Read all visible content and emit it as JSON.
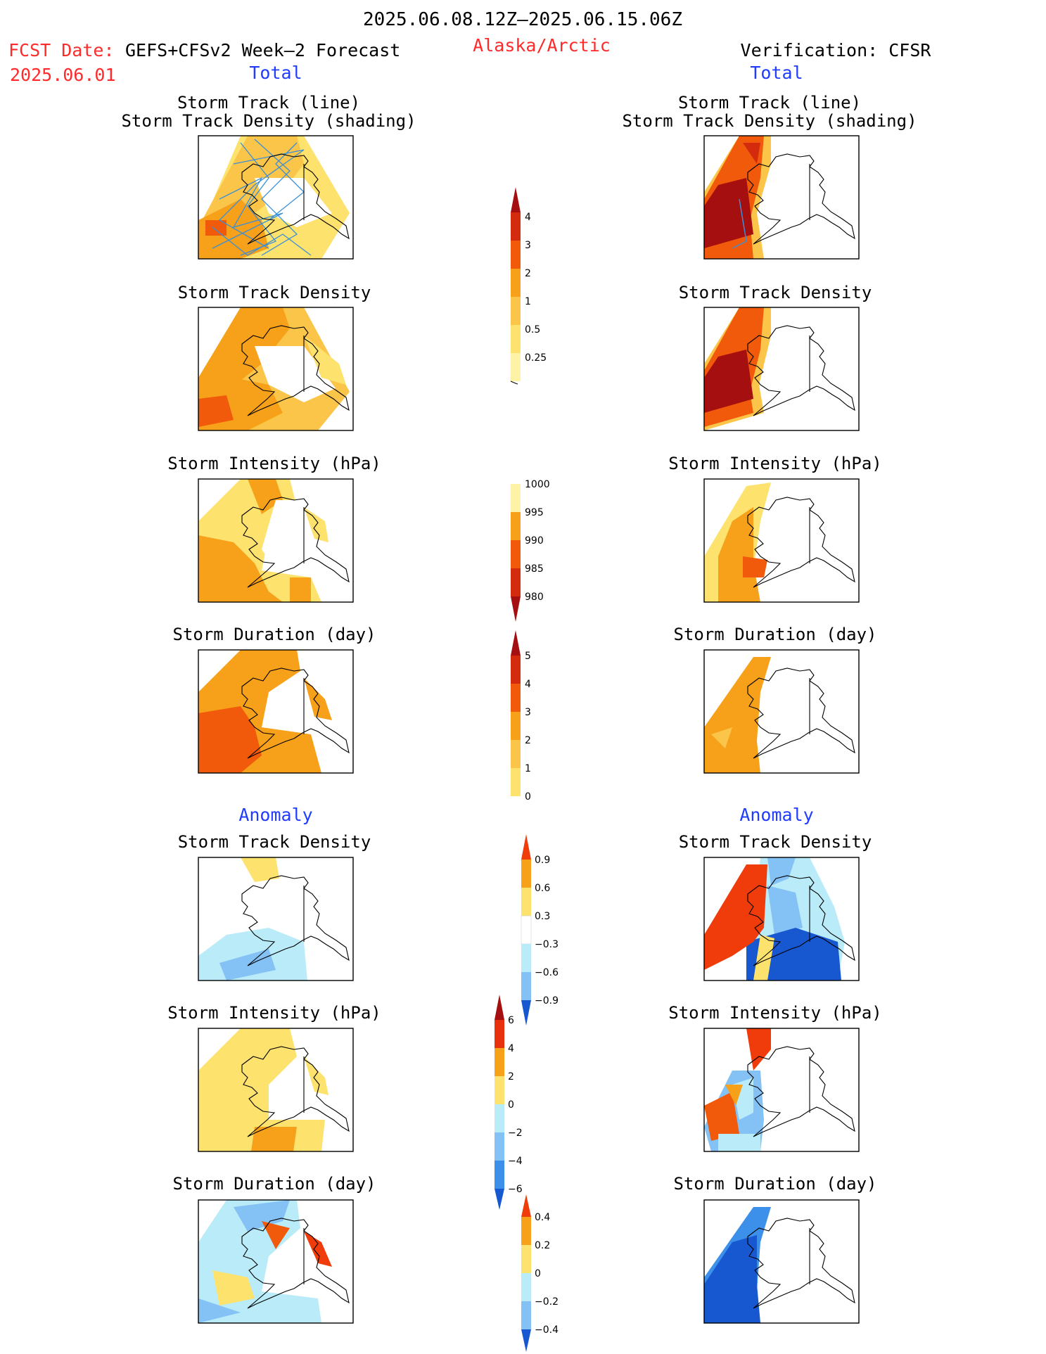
{
  "header": {
    "period": "2025.06.08.12Z–2025.06.15.06Z",
    "fcst_label": "FCST Date:",
    "fcst_model": "GEFS+CFSv2 Week–2 Forecast",
    "fcst_date": "2025.06.01",
    "region": "Alaska/Arctic",
    "verification": "Verification: CFSR"
  },
  "sections": {
    "left_total": "Total",
    "right_total": "Total",
    "left_anomaly": "Anomaly",
    "right_anomaly": "Anomaly"
  },
  "panel_titles": {
    "track_line": "Storm Track (line)",
    "track_shading": "Storm Track Density (shading)",
    "density": "Storm Track Density",
    "intensity": "Storm Intensity (hPa)",
    "duration": "Storm Duration (day)"
  },
  "colorbars": [
    {
      "name": "track-density-total",
      "labels": [
        "4",
        "3",
        "2",
        "1",
        "0.5",
        "0.25"
      ],
      "colors": [
        "#a50f0f",
        "#d42a0e",
        "#f05a0a",
        "#f7a01a",
        "#fbc54a",
        "#fdf2a6"
      ]
    },
    {
      "name": "intensity-total",
      "labels": [
        "1000",
        "995",
        "990",
        "985",
        "980"
      ],
      "colors": [
        "#fdf2a6",
        "#f7a01a",
        "#f05a0a",
        "#d42a0e",
        "#a50f0f"
      ]
    },
    {
      "name": "duration-total",
      "labels": [
        "5",
        "4",
        "3",
        "2",
        "1",
        "0"
      ],
      "colors": [
        "#a50f0f",
        "#d42a0e",
        "#f05a0a",
        "#f7a01a",
        "#fbc54a",
        "#fdf2a6"
      ]
    },
    {
      "name": "density-anomaly",
      "labels": [
        "0.9",
        "0.6",
        "0.3",
        "−0.3",
        "−0.6",
        "−0.9"
      ],
      "colors": [
        "#f03c0a",
        "#f7a01a",
        "#fde26e",
        "#ffffff",
        "#b9ecf8",
        "#84c2f5",
        "#3c90ea",
        "#1757d0"
      ]
    },
    {
      "name": "intensity-anomaly",
      "labels": [
        "6",
        "4",
        "2",
        "0",
        "−2",
        "−4",
        "−6"
      ],
      "colors": [
        "#e8300c",
        "#f7a01a",
        "#fde26e",
        "#b9ecf8",
        "#84c2f5",
        "#3c90ea",
        "#1757d0"
      ]
    },
    {
      "name": "duration-anomaly",
      "labels": [
        "0.4",
        "0.2",
        "0",
        "−0.2",
        "−0.4"
      ],
      "colors": [
        "#f03c0a",
        "#f7a01a",
        "#fde26e",
        "#b9ecf8",
        "#84c2f5",
        "#3c90ea",
        "#1757d0"
      ]
    }
  ],
  "colors": {
    "fcst_red": "#ff2b2b",
    "section_blue": "#1f3cff",
    "track_line_blue": "#3a8fd6",
    "orange": "#f7a01a",
    "light_yellow": "#fde26e",
    "dark_red": "#a50f0f",
    "red_orange": "#f03c0a",
    "light_blue": "#b9ecf8",
    "mid_blue": "#3c90ea",
    "deep_blue": "#1757d0"
  }
}
